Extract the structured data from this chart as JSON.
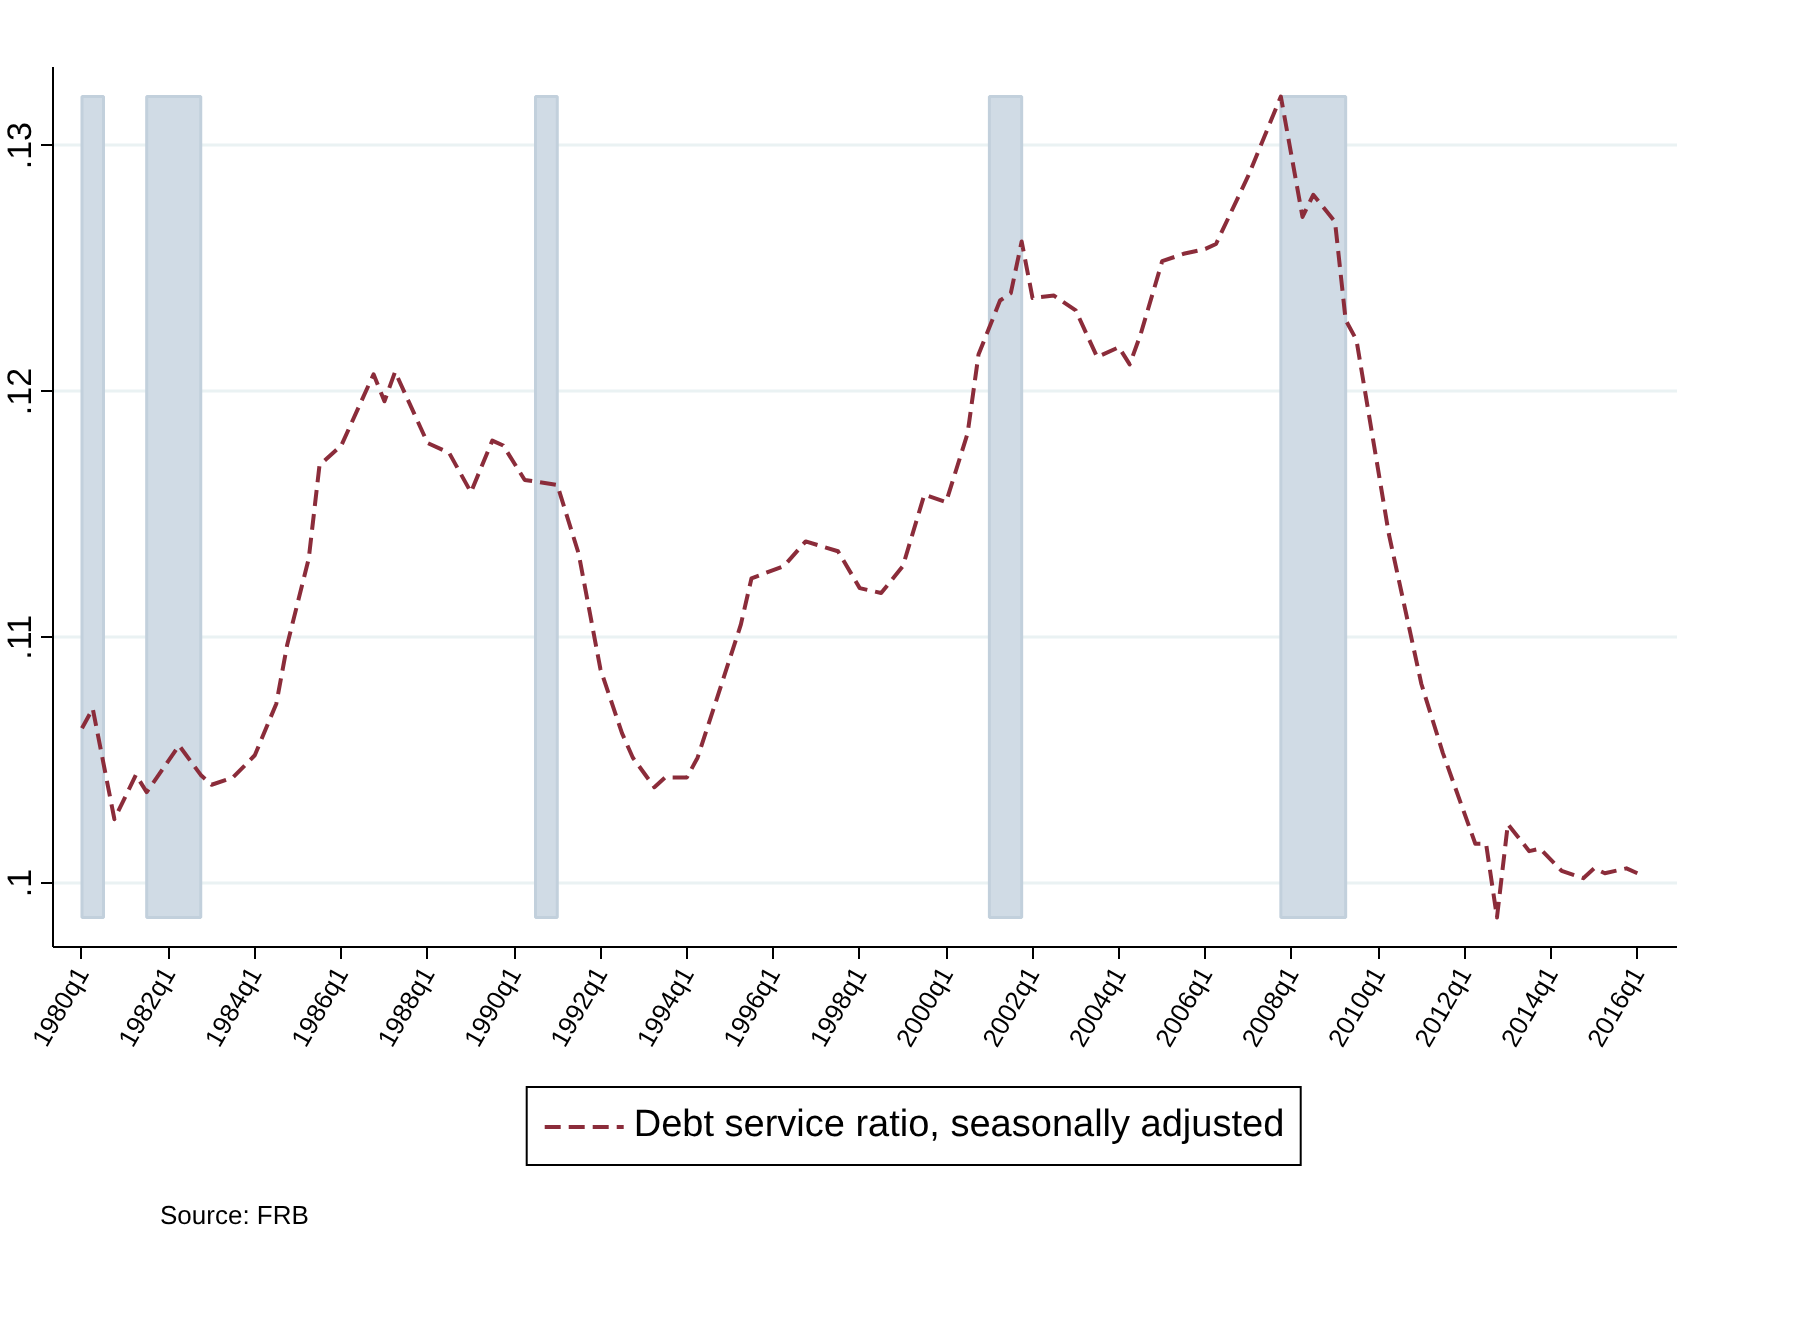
{
  "chart_data": {
    "type": "line",
    "legend": "bottom",
    "grid": "y",
    "line_style": "dashed",
    "marker": "none",
    "annotations": [
      "Source: FRB"
    ],
    "xlim": [
      "1979-05",
      "2016-12"
    ],
    "ylim": [
      0.0974,
      0.1332
    ],
    "xticks": [
      {
        "value": "1980-01",
        "label": "1980q1"
      },
      {
        "value": "1982-01",
        "label": "1982q1"
      },
      {
        "value": "1984-01",
        "label": "1984q1"
      },
      {
        "value": "1986-01",
        "label": "1986q1"
      },
      {
        "value": "1988-01",
        "label": "1988q1"
      },
      {
        "value": "1990-01",
        "label": "1990q1"
      },
      {
        "value": "1992-01",
        "label": "1992q1"
      },
      {
        "value": "1994-01",
        "label": "1994q1"
      },
      {
        "value": "1996-01",
        "label": "1996q1"
      },
      {
        "value": "1998-01",
        "label": "1998q1"
      },
      {
        "value": "2000-01",
        "label": "2000q1"
      },
      {
        "value": "2002-01",
        "label": "2002q1"
      },
      {
        "value": "2004-01",
        "label": "2004q1"
      },
      {
        "value": "2006-01",
        "label": "2006q1"
      },
      {
        "value": "2008-01",
        "label": "2008q1"
      },
      {
        "value": "2010-01",
        "label": "2010q1"
      },
      {
        "value": "2012-01",
        "label": "2012q1"
      },
      {
        "value": "2014-01",
        "label": "2014q1"
      },
      {
        "value": "2016-01",
        "label": "2016q1"
      }
    ],
    "yticks": [
      {
        "value": 0.1,
        "label": ".1"
      },
      {
        "value": 0.11,
        "label": ".11"
      },
      {
        "value": 0.12,
        "label": ".12"
      },
      {
        "value": 0.13,
        "label": ".13"
      }
    ],
    "bands": [
      {
        "axis": "x",
        "from": "1980-01",
        "to": "1980-07",
        "color": "#d0dbe5"
      },
      {
        "axis": "x",
        "from": "1981-07",
        "to": "1982-10",
        "color": "#d0dbe5"
      },
      {
        "axis": "x",
        "from": "1990-07",
        "to": "1991-01",
        "color": "#d0dbe5"
      },
      {
        "axis": "x",
        "from": "2001-01",
        "to": "2001-10",
        "color": "#d0dbe5"
      },
      {
        "axis": "x",
        "from": "2007-10",
        "to": "2009-04",
        "color": "#d0dbe5"
      }
    ],
    "series": [
      {
        "name": "Debt service ratio, seasonally adjusted",
        "color": "#8b2c3a",
        "x": [
          "1980-01",
          "1980-04",
          "1980-10",
          "1981-04",
          "1981-07",
          "1982-04",
          "1982-10",
          "1983-01",
          "1983-07",
          "1984-01",
          "1984-07",
          "1984-10",
          "1985-04",
          "1985-07",
          "1986-01",
          "1986-10",
          "1987-01",
          "1987-04",
          "1988-01",
          "1988-07",
          "1989-01",
          "1989-07",
          "1989-10",
          "1990-04",
          "1991-01",
          "1991-07",
          "1992-01",
          "1992-07",
          "1992-10",
          "1993-04",
          "1993-07",
          "1994-01",
          "1994-04",
          "1994-10",
          "1995-04",
          "1995-07",
          "1996-04",
          "1996-10",
          "1997-07",
          "1998-01",
          "1998-07",
          "1999-01",
          "1999-07",
          "2000-01",
          "2000-07",
          "2000-10",
          "2001-04",
          "2001-07",
          "2001-10",
          "2002-01",
          "2002-07",
          "2003-01",
          "2003-07",
          "2004-01",
          "2004-04",
          "2004-07",
          "2005-01",
          "2005-07",
          "2006-01",
          "2006-04",
          "2007-01",
          "2007-10",
          "2008-04",
          "2008-07",
          "2009-01",
          "2009-04",
          "2009-07",
          "2010-04",
          "2011-01",
          "2011-07",
          "2012-04",
          "2012-07",
          "2012-10",
          "2013-01",
          "2013-07",
          "2013-10",
          "2014-04",
          "2014-10",
          "2015-01",
          "2015-04",
          "2015-10",
          "2016-01"
        ],
        "values": [
          0.1063,
          0.1071,
          0.1026,
          0.1044,
          0.1037,
          0.1056,
          0.1044,
          0.104,
          0.1043,
          0.1052,
          0.1073,
          0.1097,
          0.1132,
          0.117,
          0.1178,
          0.1207,
          0.1196,
          0.1208,
          0.1179,
          0.1175,
          0.1159,
          0.118,
          0.1178,
          0.1164,
          0.1162,
          0.1134,
          0.1087,
          0.1061,
          0.1051,
          0.1039,
          0.1043,
          0.1043,
          0.1051,
          0.1078,
          0.1105,
          0.1124,
          0.1129,
          0.1139,
          0.1135,
          0.112,
          0.1118,
          0.1129,
          0.1158,
          0.1155,
          0.1183,
          0.1215,
          0.1237,
          0.124,
          0.1261,
          0.1238,
          0.1239,
          0.1233,
          0.1214,
          0.1218,
          0.1211,
          0.1223,
          0.1253,
          0.1256,
          0.1258,
          0.126,
          0.1288,
          0.132,
          0.1271,
          0.128,
          0.1269,
          0.1229,
          0.1221,
          0.1142,
          0.1081,
          0.1053,
          0.1016,
          0.1016,
          0.0986,
          0.1024,
          0.1013,
          0.1014,
          0.1005,
          0.1002,
          0.1006,
          0.1004,
          0.1006,
          0.1004
        ]
      }
    ]
  }
}
